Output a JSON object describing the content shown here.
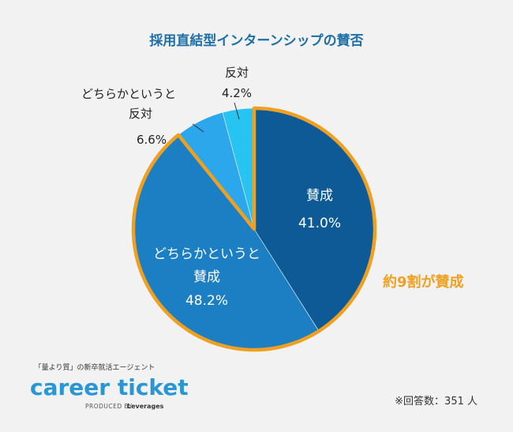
{
  "chart_data": {
    "type": "pie",
    "title": "採用直結型インターンシップの賛否",
    "slices": [
      {
        "key": "s1",
        "label_lines": [
          "賛成"
        ],
        "value": 41.0,
        "display": "41.0%",
        "color": "#0d5a96"
      },
      {
        "key": "s2",
        "label_lines": [
          "どちらかというと",
          "賛成"
        ],
        "value": 48.2,
        "display": "48.2%",
        "color": "#1c7fc4"
      },
      {
        "key": "s3",
        "label_lines": [
          "どちらかというと",
          "反対"
        ],
        "value": 6.6,
        "display": "6.6%",
        "color": "#2ca7eb"
      },
      {
        "key": "s4",
        "label_lines": [
          "反対"
        ],
        "value": 4.2,
        "display": "4.2%",
        "color": "#27c3f1"
      }
    ],
    "highlight": {
      "slices": [
        "s1",
        "s2"
      ],
      "color": "#f0a020"
    },
    "annotation": "約9割が賛成",
    "note": "※回答数：351 人"
  },
  "logo": {
    "tagline": "「量より質」の新卒就活エージェント",
    "name": "career ticket",
    "produced_by": "PRODUCED BY",
    "brand": "Leverages"
  }
}
